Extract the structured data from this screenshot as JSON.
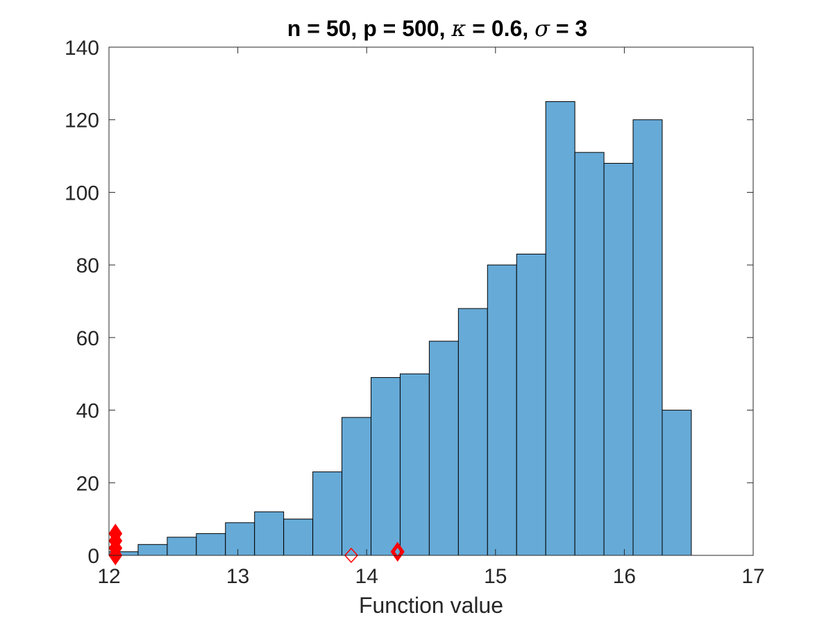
{
  "chart_data": {
    "type": "bar",
    "title": "n = 50, p = 500, κ = 0.6, σ = 3",
    "title_parts": {
      "pre": "n = 50, p = 500, ",
      "kappa": "κ",
      "mid": " = 0.6, ",
      "sigma": "σ",
      "post": " = 3"
    },
    "xlabel": "Function value",
    "ylabel": "",
    "xlim": [
      12,
      17
    ],
    "ylim": [
      0,
      140
    ],
    "xticks": [
      "12",
      "13",
      "14",
      "15",
      "16",
      "17"
    ],
    "yticks": [
      "0",
      "20",
      "40",
      "60",
      "80",
      "100",
      "120",
      "140"
    ],
    "grid": false,
    "bin_edges": [
      12.0,
      12.226,
      12.452,
      12.678,
      12.904,
      13.13,
      13.356,
      13.582,
      13.808,
      14.034,
      14.26,
      14.486,
      14.712,
      14.938,
      15.164,
      15.39,
      15.616,
      15.842,
      16.068,
      16.294,
      16.52
    ],
    "values": [
      1,
      3,
      5,
      6,
      9,
      12,
      10,
      23,
      38,
      49,
      50,
      59,
      68,
      80,
      83,
      125,
      111,
      108,
      120,
      40
    ],
    "bar_color": "#66aad7",
    "markers": [
      {
        "x": 12.05,
        "y": 0,
        "style": "filled-diamond"
      },
      {
        "x": 12.05,
        "y": 2,
        "style": "filled-diamond"
      },
      {
        "x": 12.05,
        "y": 4,
        "style": "filled-diamond"
      },
      {
        "x": 12.05,
        "y": 6,
        "style": "filled-diamond"
      },
      {
        "x": 13.88,
        "y": 0,
        "style": "open-diamond"
      },
      {
        "x": 14.24,
        "y": 1,
        "style": "bold-diamond"
      }
    ],
    "marker_color": "#ff0000"
  }
}
